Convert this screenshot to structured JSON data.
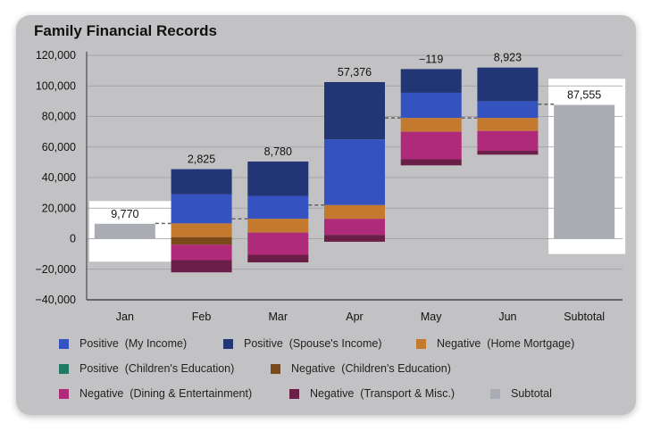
{
  "card": {
    "title": "Family Financial Records"
  },
  "colors": {
    "pos_my": "#3553c0",
    "pos_spouse": "#223575",
    "neg_mortgage": "#c47a2e",
    "pos_child": "#1f7a63",
    "neg_child": "#7a4a1a",
    "neg_dining": "#b02a7a",
    "neg_transport": "#6a1e48",
    "subtotal": "#a9acb2"
  },
  "chart_data": {
    "type": "waterfall",
    "title": "Family Financial Records",
    "ylim": [
      -40000,
      120000
    ],
    "yticks": [
      "120,000",
      "100,000",
      "80,000",
      "60,000",
      "40,000",
      "20,000",
      "0",
      "−20,000",
      "−40,000"
    ],
    "ytick_values": [
      120000,
      100000,
      80000,
      60000,
      40000,
      20000,
      0,
      -20000,
      -40000
    ],
    "categories": [
      "Jan",
      "Feb",
      "Mar",
      "Apr",
      "May",
      "Jun",
      "Subtotal"
    ],
    "totals": [
      "9,770",
      "2,825",
      "8,780",
      "57,376",
      "−119",
      "8,923",
      "87,555"
    ],
    "bars": [
      {
        "category": "Jan",
        "segments": [
          {
            "series": "Subtotal",
            "from": 0,
            "to": 9770
          }
        ]
      },
      {
        "category": "Feb",
        "segments": [
          {
            "series": "Positive (My Income)",
            "from": 10000,
            "to": 29000
          },
          {
            "series": "Positive (Spouse's Income)",
            "from": 29000,
            "to": 45500
          },
          {
            "series": "Negative (Home Mortgage)",
            "from": 10000,
            "to": 1000
          },
          {
            "series": "Negative (Children's Education)",
            "from": 1000,
            "to": -4000
          },
          {
            "series": "Negative (Dining & Entertainment)",
            "from": -4000,
            "to": -14000
          },
          {
            "series": "Negative (Transport & Misc.)",
            "from": -14000,
            "to": -22000
          }
        ]
      },
      {
        "category": "Mar",
        "segments": [
          {
            "series": "Positive (My Income)",
            "from": 13000,
            "to": 28000
          },
          {
            "series": "Positive (Spouse's Income)",
            "from": 28000,
            "to": 50500
          },
          {
            "series": "Negative (Home Mortgage)",
            "from": 13000,
            "to": 4000
          },
          {
            "series": "Negative (Dining & Entertainment)",
            "from": 4000,
            "to": -10500
          },
          {
            "series": "Negative (Transport & Misc.)",
            "from": -10500,
            "to": -15500
          }
        ]
      },
      {
        "category": "Apr",
        "segments": [
          {
            "series": "Positive (My Income)",
            "from": 22000,
            "to": 65000
          },
          {
            "series": "Positive (Spouse's Income)",
            "from": 65000,
            "to": 102500
          },
          {
            "series": "Negative (Home Mortgage)",
            "from": 22000,
            "to": 13000
          },
          {
            "series": "Negative (Dining & Entertainment)",
            "from": 13000,
            "to": 2500
          },
          {
            "series": "Negative (Transport & Misc.)",
            "from": 2500,
            "to": -2000
          }
        ]
      },
      {
        "category": "May",
        "segments": [
          {
            "series": "Positive (My Income)",
            "from": 79000,
            "to": 95500
          },
          {
            "series": "Positive (Spouse's Income)",
            "from": 95500,
            "to": 111000
          },
          {
            "series": "Negative (Home Mortgage)",
            "from": 79000,
            "to": 70000
          },
          {
            "series": "Negative (Dining & Entertainment)",
            "from": 70000,
            "to": 52000
          },
          {
            "series": "Negative (Transport & Misc.)",
            "from": 52000,
            "to": 48000
          }
        ]
      },
      {
        "category": "Jun",
        "segments": [
          {
            "series": "Positive (My Income)",
            "from": 79000,
            "to": 90000
          },
          {
            "series": "Positive (Spouse's Income)",
            "from": 90000,
            "to": 112000
          },
          {
            "series": "Negative (Home Mortgage)",
            "from": 79000,
            "to": 70500
          },
          {
            "series": "Negative (Dining & Entertainment)",
            "from": 70500,
            "to": 57500
          },
          {
            "series": "Negative (Transport & Misc.)",
            "from": 57500,
            "to": 55000
          }
        ]
      },
      {
        "category": "Subtotal",
        "segments": [
          {
            "series": "Subtotal",
            "from": 0,
            "to": 87555
          }
        ]
      }
    ],
    "connectors": [
      {
        "from_category": "Jan",
        "to_category": "Feb",
        "value": 10000
      },
      {
        "from_category": "Feb",
        "to_category": "Mar",
        "value": 13000
      },
      {
        "from_category": "Mar",
        "to_category": "Apr",
        "value": 22000
      },
      {
        "from_category": "Apr",
        "to_category": "May",
        "value": 79000
      },
      {
        "from_category": "May",
        "to_category": "Jun",
        "value": 79000
      },
      {
        "from_category": "Jun",
        "to_category": "Subtotal",
        "value": 88000
      }
    ],
    "highlighted_categories": [
      "Jan",
      "Subtotal"
    ],
    "grid": true,
    "legend_position": "bottom",
    "legend": [
      {
        "label": "Positive  (My Income)",
        "color_key": "pos_my"
      },
      {
        "label": "Positive  (Spouse's Income)",
        "color_key": "pos_spouse"
      },
      {
        "label": "Negative  (Home Mortgage)",
        "color_key": "neg_mortgage"
      },
      {
        "label": "Positive  (Children's Education)",
        "color_key": "pos_child"
      },
      {
        "label": "Negative  (Children's Education)",
        "color_key": "neg_child"
      },
      {
        "label": "Negative  (Dining & Entertainment)",
        "color_key": "neg_dining"
      },
      {
        "label": "Negative  (Transport & Misc.)",
        "color_key": "neg_transport"
      },
      {
        "label": "Subtotal",
        "color_key": "subtotal"
      }
    ]
  }
}
